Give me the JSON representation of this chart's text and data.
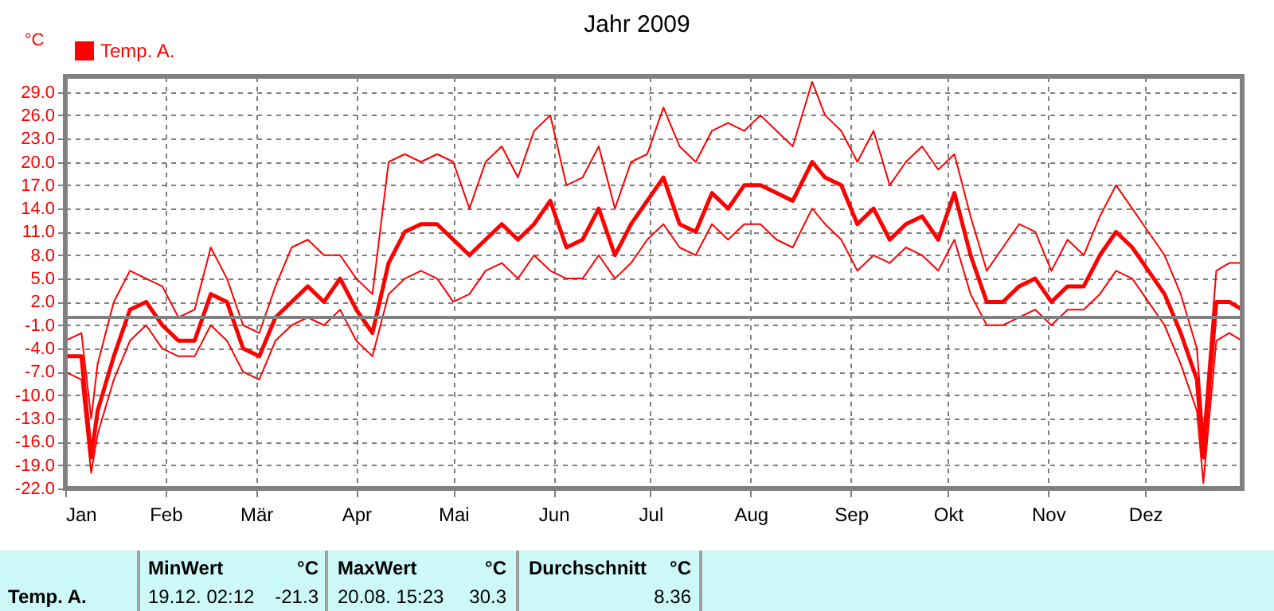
{
  "chart_data": {
    "type": "line",
    "title": "Jahr 2009",
    "ylabel": "°C",
    "x": [
      "2009-01-01",
      "2009-01-06",
      "2009-01-09",
      "2009-01-11",
      "2009-01-16",
      "2009-01-21",
      "2009-01-26",
      "2009-01-31",
      "2009-02-05",
      "2009-02-10",
      "2009-02-15",
      "2009-02-20",
      "2009-02-25",
      "2009-03-02",
      "2009-03-07",
      "2009-03-12",
      "2009-03-17",
      "2009-03-22",
      "2009-03-27",
      "2009-04-01",
      "2009-04-06",
      "2009-04-11",
      "2009-04-16",
      "2009-04-21",
      "2009-04-26",
      "2009-05-01",
      "2009-05-06",
      "2009-05-11",
      "2009-05-16",
      "2009-05-21",
      "2009-05-26",
      "2009-05-31",
      "2009-06-05",
      "2009-06-10",
      "2009-06-15",
      "2009-06-20",
      "2009-06-25",
      "2009-06-30",
      "2009-07-05",
      "2009-07-10",
      "2009-07-15",
      "2009-07-20",
      "2009-07-25",
      "2009-07-30",
      "2009-08-04",
      "2009-08-09",
      "2009-08-14",
      "2009-08-20",
      "2009-08-24",
      "2009-08-29",
      "2009-09-03",
      "2009-09-08",
      "2009-09-13",
      "2009-09-18",
      "2009-09-23",
      "2009-09-28",
      "2009-10-03",
      "2009-10-08",
      "2009-10-13",
      "2009-10-18",
      "2009-10-23",
      "2009-10-28",
      "2009-11-02",
      "2009-11-07",
      "2009-11-12",
      "2009-11-17",
      "2009-11-22",
      "2009-11-27",
      "2009-12-02",
      "2009-12-07",
      "2009-12-12",
      "2009-12-17",
      "2009-12-19",
      "2009-12-23",
      "2009-12-27",
      "2009-12-31"
    ],
    "series": [
      {
        "color": "#ff0000",
        "values": [
          -3,
          -2,
          -13,
          -6,
          2,
          6,
          5,
          4,
          0,
          1,
          9,
          5,
          -1,
          -2,
          4,
          9,
          10,
          8,
          8,
          5,
          3,
          20,
          21,
          20,
          21,
          20,
          14,
          20,
          22,
          18,
          24,
          26,
          17,
          18,
          22,
          14,
          20,
          21,
          27,
          22,
          20,
          24,
          25,
          24,
          26,
          24,
          22,
          30.3,
          26,
          24,
          20,
          24,
          17,
          20,
          22,
          19,
          21,
          13,
          6,
          9,
          12,
          11,
          6,
          10,
          8,
          13,
          17,
          14,
          11,
          8,
          3,
          -4,
          -15,
          6,
          7,
          7
        ]
      },
      {
        "name": "Temp. A.",
        "color": "#ff0000",
        "values": [
          -5,
          -5,
          -18,
          -12,
          -5,
          1,
          2,
          -1,
          -3,
          -3,
          3,
          2,
          -4,
          -5,
          0,
          2,
          4,
          2,
          5,
          1,
          -2,
          7,
          11,
          12,
          12,
          10,
          8,
          10,
          12,
          10,
          12,
          15,
          9,
          10,
          14,
          8,
          12,
          15,
          18,
          12,
          11,
          16,
          14,
          17,
          17,
          16,
          15,
          20,
          18,
          17,
          12,
          14,
          10,
          12,
          13,
          10,
          16,
          8,
          2,
          2,
          4,
          5,
          2,
          4,
          4,
          8,
          11,
          9,
          6,
          3,
          -2,
          -8,
          -18,
          2,
          2,
          1
        ]
      },
      {
        "color": "#ff0000",
        "values": [
          -7,
          -8,
          -20,
          -15,
          -8,
          -3,
          -1,
          -4,
          -5,
          -5,
          -1,
          -3,
          -7,
          -8,
          -3,
          -1,
          0,
          -1,
          1,
          -3,
          -5,
          3,
          5,
          6,
          5,
          2,
          3,
          6,
          7,
          5,
          8,
          6,
          5,
          5,
          8,
          5,
          7,
          10,
          12,
          9,
          8,
          12,
          10,
          12,
          12,
          10,
          9,
          14,
          12,
          10,
          6,
          8,
          7,
          9,
          8,
          6,
          10,
          3,
          -1,
          -1,
          0,
          1,
          -1,
          1,
          1,
          3,
          6,
          5,
          2,
          -1,
          -6,
          -12,
          -21.3,
          -3,
          -2,
          -3
        ]
      }
    ],
    "xlim": [
      "2009-01-01",
      "2009-12-31"
    ],
    "xticks": [
      {
        "value": "2009-01-01",
        "label": "Jan"
      },
      {
        "value": "2009-02-01",
        "label": "Feb"
      },
      {
        "value": "2009-03-01",
        "label": "Mär"
      },
      {
        "value": "2009-04-01",
        "label": "Apr"
      },
      {
        "value": "2009-05-01",
        "label": "Mai"
      },
      {
        "value": "2009-06-01",
        "label": "Jun"
      },
      {
        "value": "2009-07-01",
        "label": "Jul"
      },
      {
        "value": "2009-08-01",
        "label": "Aug"
      },
      {
        "value": "2009-09-01",
        "label": "Sep"
      },
      {
        "value": "2009-10-01",
        "label": "Okt"
      },
      {
        "value": "2009-11-01",
        "label": "Nov"
      },
      {
        "value": "2009-12-01",
        "label": "Dez"
      }
    ],
    "ylim": [
      -22,
      31
    ],
    "yticks": [
      {
        "value": -22,
        "label": "-22.0"
      },
      {
        "value": -19,
        "label": "-19.0"
      },
      {
        "value": -16,
        "label": "-16.0"
      },
      {
        "value": -13,
        "label": "-13.0"
      },
      {
        "value": -10,
        "label": "-10.0"
      },
      {
        "value": -7,
        "label": "-7.0"
      },
      {
        "value": -4,
        "label": "-4.0"
      },
      {
        "value": -1,
        "label": "-1.0"
      },
      {
        "value": 2,
        "label": "2.0"
      },
      {
        "value": 5,
        "label": "5.0"
      },
      {
        "value": 8,
        "label": "8.0"
      },
      {
        "value": 11,
        "label": "11.0"
      },
      {
        "value": 14,
        "label": "14.0"
      },
      {
        "value": 17,
        "label": "17.0"
      },
      {
        "value": 20,
        "label": "20.0"
      },
      {
        "value": 23,
        "label": "23.0"
      },
      {
        "value": 26,
        "label": "26.0"
      },
      {
        "value": 29,
        "label": "29.0"
      }
    ],
    "ref_lines": [
      {
        "axis": "y",
        "value": 0,
        "color": "#808080"
      }
    ],
    "grid": true,
    "legend": "top left",
    "marker": "none",
    "line_style": "solid",
    "annotations": [
      "Temp. A.",
      "MinWert",
      "°C",
      "19.12.  02:12",
      "-21.3",
      "MaxWert",
      "°C",
      "20.08.  15:23",
      "30.3",
      "Durchschnitt",
      "°C",
      "8.36"
    ]
  }
}
